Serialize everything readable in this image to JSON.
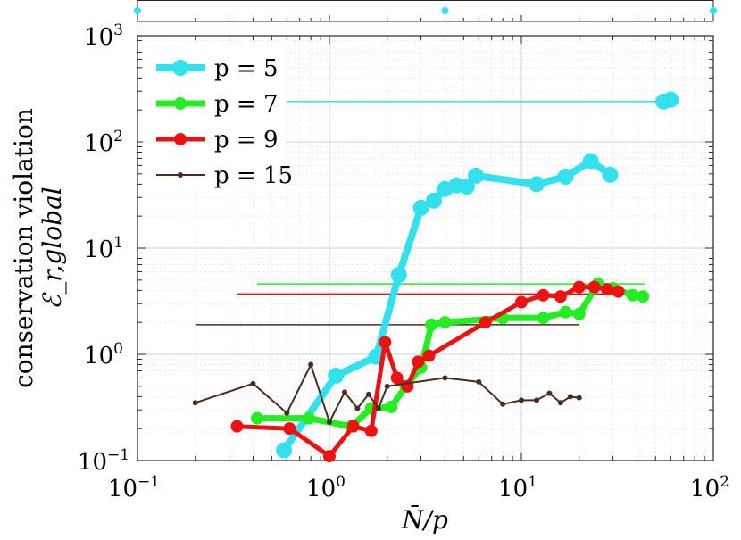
{
  "chart_data": {
    "type": "line",
    "xscale": "log",
    "yscale": "log",
    "xlim": [
      0.1,
      100
    ],
    "ylim": [
      0.1,
      1000
    ],
    "grid": true,
    "legend_placement": "top-left",
    "xlabel": "N̄/p",
    "ylabel_line1": "conservation violation",
    "ylabel_line2": "ℰ_r,global",
    "x_ticks": [
      {
        "value": 0.1,
        "base": "10",
        "exp": "−1"
      },
      {
        "value": 1,
        "base": "10",
        "exp": "0"
      },
      {
        "value": 10,
        "base": "10",
        "exp": "1"
      },
      {
        "value": 100,
        "base": "10",
        "exp": "2"
      }
    ],
    "y_ticks": [
      {
        "value": 0.1,
        "base": "10",
        "exp": "−1"
      },
      {
        "value": 1,
        "base": "10",
        "exp": "0"
      },
      {
        "value": 10,
        "base": "10",
        "exp": "1"
      },
      {
        "value": 100,
        "base": "10",
        "exp": "2"
      },
      {
        "value": 1000,
        "base": "10",
        "exp": "3"
      }
    ],
    "top_axis_markers": [
      0.1,
      4,
      100
    ],
    "series": [
      {
        "name": "p = 5",
        "color": "#33e0ee",
        "x": [
          0.58,
          1.08,
          1.75,
          2.3,
          3.0,
          3.5,
          4.0,
          4.6,
          5.2,
          5.8,
          12,
          17,
          23,
          29
        ],
        "y": [
          0.125,
          0.63,
          0.95,
          5.6,
          24,
          28,
          36,
          39,
          38,
          48,
          40,
          47,
          66,
          49
        ],
        "ref_line": {
          "x": [
            0.6,
            55
          ],
          "y": 240
        },
        "outliers": {
          "x": [
            55,
            60
          ],
          "y": [
            240,
            250
          ]
        }
      },
      {
        "name": "p = 7",
        "color": "#22ee22",
        "x": [
          0.42,
          0.78,
          1.3,
          1.65,
          2.1,
          2.5,
          3.0,
          3.4,
          4.0,
          8,
          13,
          17,
          20,
          25,
          30,
          38,
          43
        ],
        "y": [
          0.25,
          0.25,
          0.21,
          0.31,
          0.32,
          0.5,
          0.75,
          1.9,
          2.0,
          2.2,
          2.2,
          2.5,
          2.4,
          4.6,
          4.2,
          3.6,
          3.5
        ],
        "ref_line": {
          "x": [
            0.42,
            44
          ],
          "y": 4.6
        }
      },
      {
        "name": "p = 9",
        "color": "#ee1111",
        "x": [
          0.33,
          0.62,
          1.0,
          1.33,
          1.65,
          1.95,
          2.25,
          2.55,
          2.9,
          3.3,
          6.5,
          10,
          13,
          16,
          20,
          24,
          28,
          32
        ],
        "y": [
          0.21,
          0.2,
          0.11,
          0.21,
          0.19,
          1.3,
          0.6,
          0.5,
          0.85,
          0.97,
          2.0,
          3.1,
          3.6,
          3.5,
          4.3,
          4.3,
          4.1,
          3.9
        ],
        "ref_line": {
          "x": [
            0.33,
            33
          ],
          "y": 3.7
        }
      },
      {
        "name": "p = 15",
        "color": "#4a2c1c",
        "x": [
          0.2,
          0.4,
          0.6,
          0.8,
          1.0,
          1.2,
          1.4,
          1.6,
          1.8,
          2.0,
          4.0,
          6.0,
          8.0,
          10,
          12,
          14,
          16,
          18,
          20
        ],
        "y": [
          0.35,
          0.53,
          0.28,
          0.8,
          0.23,
          0.44,
          0.31,
          0.42,
          0.31,
          0.5,
          0.6,
          0.55,
          0.34,
          0.37,
          0.37,
          0.43,
          0.35,
          0.4,
          0.39
        ],
        "ref_line": {
          "x": [
            0.2,
            20
          ],
          "y": 1.9
        }
      }
    ]
  }
}
